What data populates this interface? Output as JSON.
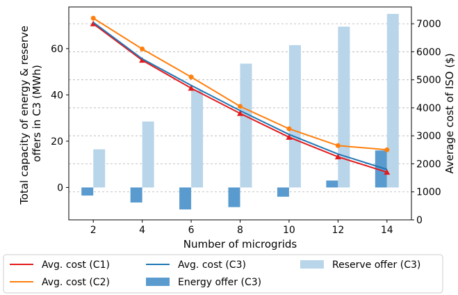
{
  "chart_data": {
    "type": "bar",
    "x": [
      2,
      4,
      6,
      8,
      10,
      12,
      14
    ],
    "xlabel": "Number of microgrids",
    "ylabel_left": "Total capacity of energy & reserve offers in C3 (MWh)",
    "ylabel_left_lines": [
      "Total capacity of energy & reserve",
      "offers in C3 (MWh)"
    ],
    "ylabel_right": "Average cost of ISO ($)",
    "xlim": [
      1,
      15
    ],
    "ylim_left": [
      -14,
      78
    ],
    "ylim_right": [
      0,
      7600
    ],
    "xticks": [
      "2",
      "4",
      "6",
      "8",
      "10",
      "12",
      "14"
    ],
    "yticks_left": [
      "0",
      "20",
      "40",
      "60"
    ],
    "yticks_right": [
      "0",
      "1000",
      "2000",
      "3000",
      "4000",
      "5000",
      "6000",
      "7000"
    ],
    "grid": true,
    "legend_position": "bottom",
    "series": [
      {
        "name": "Avg. cost (C1)",
        "kind": "line",
        "axis": "right",
        "marker": "triangle",
        "color": "#e31a1c",
        "values": [
          7000,
          5700,
          4700,
          3800,
          2950,
          2250,
          1700
        ]
      },
      {
        "name": "Avg. cost (C2)",
        "kind": "line",
        "axis": "right",
        "marker": "circle",
        "color": "#ff7f0e",
        "values": [
          7200,
          6100,
          5100,
          4050,
          3250,
          2650,
          2500
        ]
      },
      {
        "name": "Avg. cost (C3)",
        "kind": "line",
        "axis": "right",
        "marker": "none",
        "color": "#1f77b4",
        "values": [
          7050,
          5750,
          4800,
          3900,
          3050,
          2350,
          1800
        ]
      },
      {
        "name": "Energy offer (C3)",
        "kind": "bar",
        "axis": "left",
        "color": "#5a9bcf",
        "values": [
          -3.5,
          -6.5,
          -9.5,
          -8.5,
          -4,
          3,
          16
        ]
      },
      {
        "name": "Reserve offer (C3)",
        "kind": "bar",
        "axis": "left",
        "color": "#b8d5ea",
        "values": [
          16.5,
          28.5,
          42,
          53.5,
          61.5,
          69.5,
          75
        ]
      }
    ]
  }
}
